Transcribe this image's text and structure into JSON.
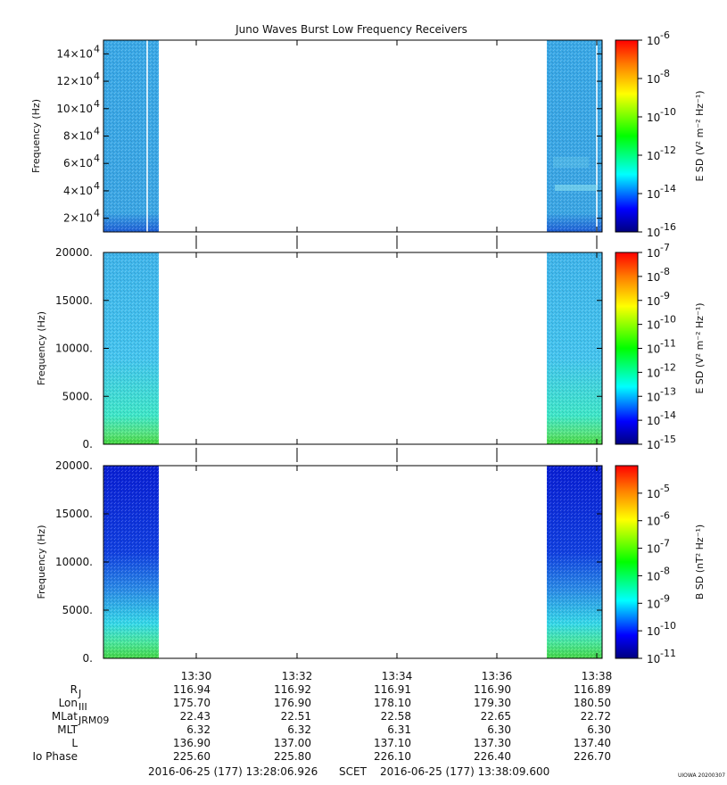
{
  "chart_data": {
    "type": "heatmap",
    "title": "Juno Waves Burst Low Frequency Receivers",
    "x_axis": {
      "tick_labels": [
        "13:30",
        "13:32",
        "13:34",
        "13:36",
        "13:38"
      ],
      "range": [
        "13:28:06.926",
        "13:38:09.600"
      ]
    },
    "panels": [
      {
        "ylabel": "Frequency (Hz)",
        "ytick_labels": [
          "2×10",
          "4×10",
          "6×10",
          "8×10",
          "10×10",
          "12×10",
          "14×10"
        ],
        "ytick_exp": "4",
        "ytick_values": [
          20000,
          40000,
          60000,
          80000,
          100000,
          120000,
          140000
        ],
        "ylim": [
          10000,
          150000
        ],
        "colorbar_label": "E SD (V² m⁻² Hz⁻¹)",
        "colorbar_ticks": [
          "10",
          "10",
          "10",
          "10",
          "10",
          "10"
        ],
        "colorbar_exps": [
          "-6",
          "-8",
          "-10",
          "-12",
          "-14",
          "-16"
        ],
        "colorbar_range": [
          -16,
          -6
        ]
      },
      {
        "ylabel": "Frequency (Hz)",
        "ytick_labels": [
          "0.",
          "5000.",
          "10000.",
          "15000.",
          "20000."
        ],
        "ytick_values": [
          0,
          5000,
          10000,
          15000,
          20000
        ],
        "ylim": [
          0,
          20000
        ],
        "colorbar_label": "E SD (V² m⁻² Hz⁻¹)",
        "colorbar_ticks": [
          "10",
          "10",
          "10",
          "10",
          "10",
          "10",
          "10",
          "10",
          "10"
        ],
        "colorbar_exps": [
          "-7",
          "-8",
          "-9",
          "-10",
          "-11",
          "-12",
          "-13",
          "-14",
          "-15"
        ],
        "colorbar_range": [
          -15,
          -7
        ]
      },
      {
        "ylabel": "Frequency (Hz)",
        "ytick_labels": [
          "0.",
          "5000.",
          "10000.",
          "15000.",
          "20000."
        ],
        "ytick_values": [
          0,
          5000,
          10000,
          15000,
          20000
        ],
        "ylim": [
          0,
          20000
        ],
        "colorbar_label": "B SD (nT² Hz⁻¹)",
        "colorbar_ticks": [
          "10",
          "10",
          "10",
          "10",
          "10",
          "10",
          "10"
        ],
        "colorbar_exps": [
          "-5",
          "-6",
          "-7",
          "-8",
          "-9",
          "-10",
          "-11"
        ],
        "colorbar_range": [
          -11,
          -4
        ]
      }
    ],
    "ephemeris": {
      "rows": [
        {
          "label": "R",
          "sub": "J",
          "values": [
            "116.94",
            "116.92",
            "116.91",
            "116.90",
            "116.89"
          ]
        },
        {
          "label": "Lon",
          "sub": "III",
          "values": [
            "175.70",
            "176.90",
            "178.10",
            "179.30",
            "180.50"
          ]
        },
        {
          "label": "MLat",
          "sub": "JRM09",
          "values": [
            "22.43",
            "22.51",
            "22.58",
            "22.65",
            "22.72"
          ]
        },
        {
          "label": "MLT",
          "sub": "",
          "values": [
            "6.32",
            "6.32",
            "6.31",
            "6.30",
            "6.30"
          ]
        },
        {
          "label": "L",
          "sub": "",
          "values": [
            "136.90",
            "137.00",
            "137.10",
            "137.30",
            "137.40"
          ]
        },
        {
          "label": "Io Phase",
          "sub": "",
          "values": [
            "225.60",
            "225.80",
            "226.10",
            "226.40",
            "226.70"
          ]
        }
      ]
    },
    "footer": {
      "start": "2016-06-25 (177) 13:28:06.926",
      "scet": "SCET",
      "end": "2016-06-25 (177) 13:38:09.600",
      "stamp": "UIOWA 20200307"
    }
  }
}
